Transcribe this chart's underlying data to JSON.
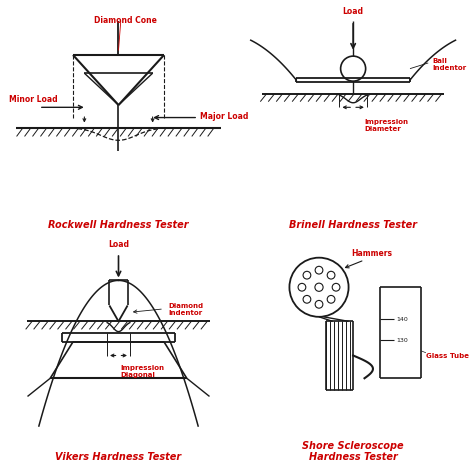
{
  "title_color": "#cc0000",
  "line_color": "#1a1a1a",
  "background": "#ffffff",
  "titles": {
    "rockwell": "Rockwell Hardness Tester",
    "brinell": "Brinell Hardness Tester",
    "vikers": "Vikers Hardness Tester",
    "shore": "Shore Scleroscope\nHardness Tester"
  },
  "labels": {
    "diamond_cone": "Diamond Cone",
    "minor_load": "Minor Load",
    "major_load": "Major Load",
    "load": "Load",
    "ball_indentor": "Ball\nIndentor",
    "impression_diameter": "Impression\nDiameter",
    "diamond_indentor": "Diamond\nIndentor",
    "impression_diagonal": "Impression\nDiagonal",
    "hammers": "Hammers",
    "glass_tube": "Glass Tube",
    "scale_140": "140",
    "scale_130": "130"
  }
}
